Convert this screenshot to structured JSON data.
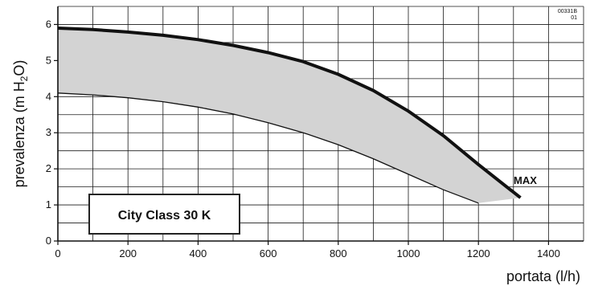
{
  "chart_data": {
    "type": "area",
    "title": "",
    "xlabel": "portata (l/h)",
    "ylabel_parts": {
      "prefix": "prevalenza (m H",
      "sub": "2",
      "suffix": "O)"
    },
    "xlim": [
      0,
      1500
    ],
    "ylim": [
      0,
      6.5
    ],
    "x_ticks": [
      0,
      200,
      400,
      600,
      800,
      1000,
      1200,
      1400
    ],
    "y_ticks": [
      0,
      1,
      2,
      3,
      4,
      5,
      6
    ],
    "grid": true,
    "code_label": [
      "00331B",
      "01"
    ],
    "model_label": "City Class 30 K",
    "series": [
      {
        "name": "MAX",
        "line": "thick",
        "x": [
          0,
          100,
          200,
          300,
          400,
          500,
          600,
          700,
          800,
          900,
          1000,
          1100,
          1200,
          1320
        ],
        "y": [
          5.9,
          5.86,
          5.79,
          5.7,
          5.58,
          5.42,
          5.22,
          4.97,
          4.62,
          4.17,
          3.6,
          2.92,
          2.12,
          1.2
        ]
      },
      {
        "name": "",
        "line": "thin",
        "x": [
          0,
          100,
          200,
          300,
          400,
          500,
          600,
          700,
          800,
          900,
          1000,
          1100,
          1200
        ],
        "y": [
          4.1,
          4.05,
          3.97,
          3.86,
          3.71,
          3.52,
          3.28,
          3.0,
          2.67,
          2.28,
          1.85,
          1.42,
          1.05
        ]
      }
    ],
    "fill_color": "#d3d3d3",
    "max_label": "MAX"
  }
}
